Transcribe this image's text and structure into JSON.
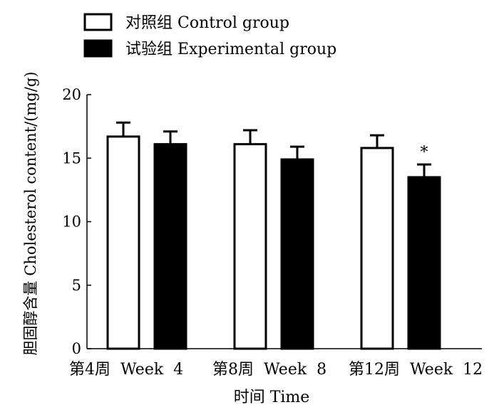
{
  "chart_data": {
    "type": "bar",
    "title": "",
    "xlabel": "时间 Time",
    "ylabel": "胆固醇含量 Cholesterol content/(mg/g)",
    "ylim": [
      0,
      20
    ],
    "yticks": [
      0,
      5,
      10,
      15,
      20
    ],
    "categories": [
      "第4周  Week  4",
      "第8周  Week  8",
      "第12周  Week  12"
    ],
    "series": [
      {
        "name": "对照组 Control group",
        "fill": "#ffffff",
        "values": [
          16.7,
          16.1,
          15.8
        ],
        "errors": [
          1.1,
          1.1,
          1.0
        ]
      },
      {
        "name": "试验组 Experimental group",
        "fill": "#000000",
        "values": [
          16.1,
          14.9,
          13.5
        ],
        "errors": [
          1.0,
          1.0,
          1.0
        ]
      }
    ],
    "annotations": [
      {
        "series": 1,
        "category": 2,
        "text": "*"
      }
    ],
    "legend": "top-left"
  }
}
